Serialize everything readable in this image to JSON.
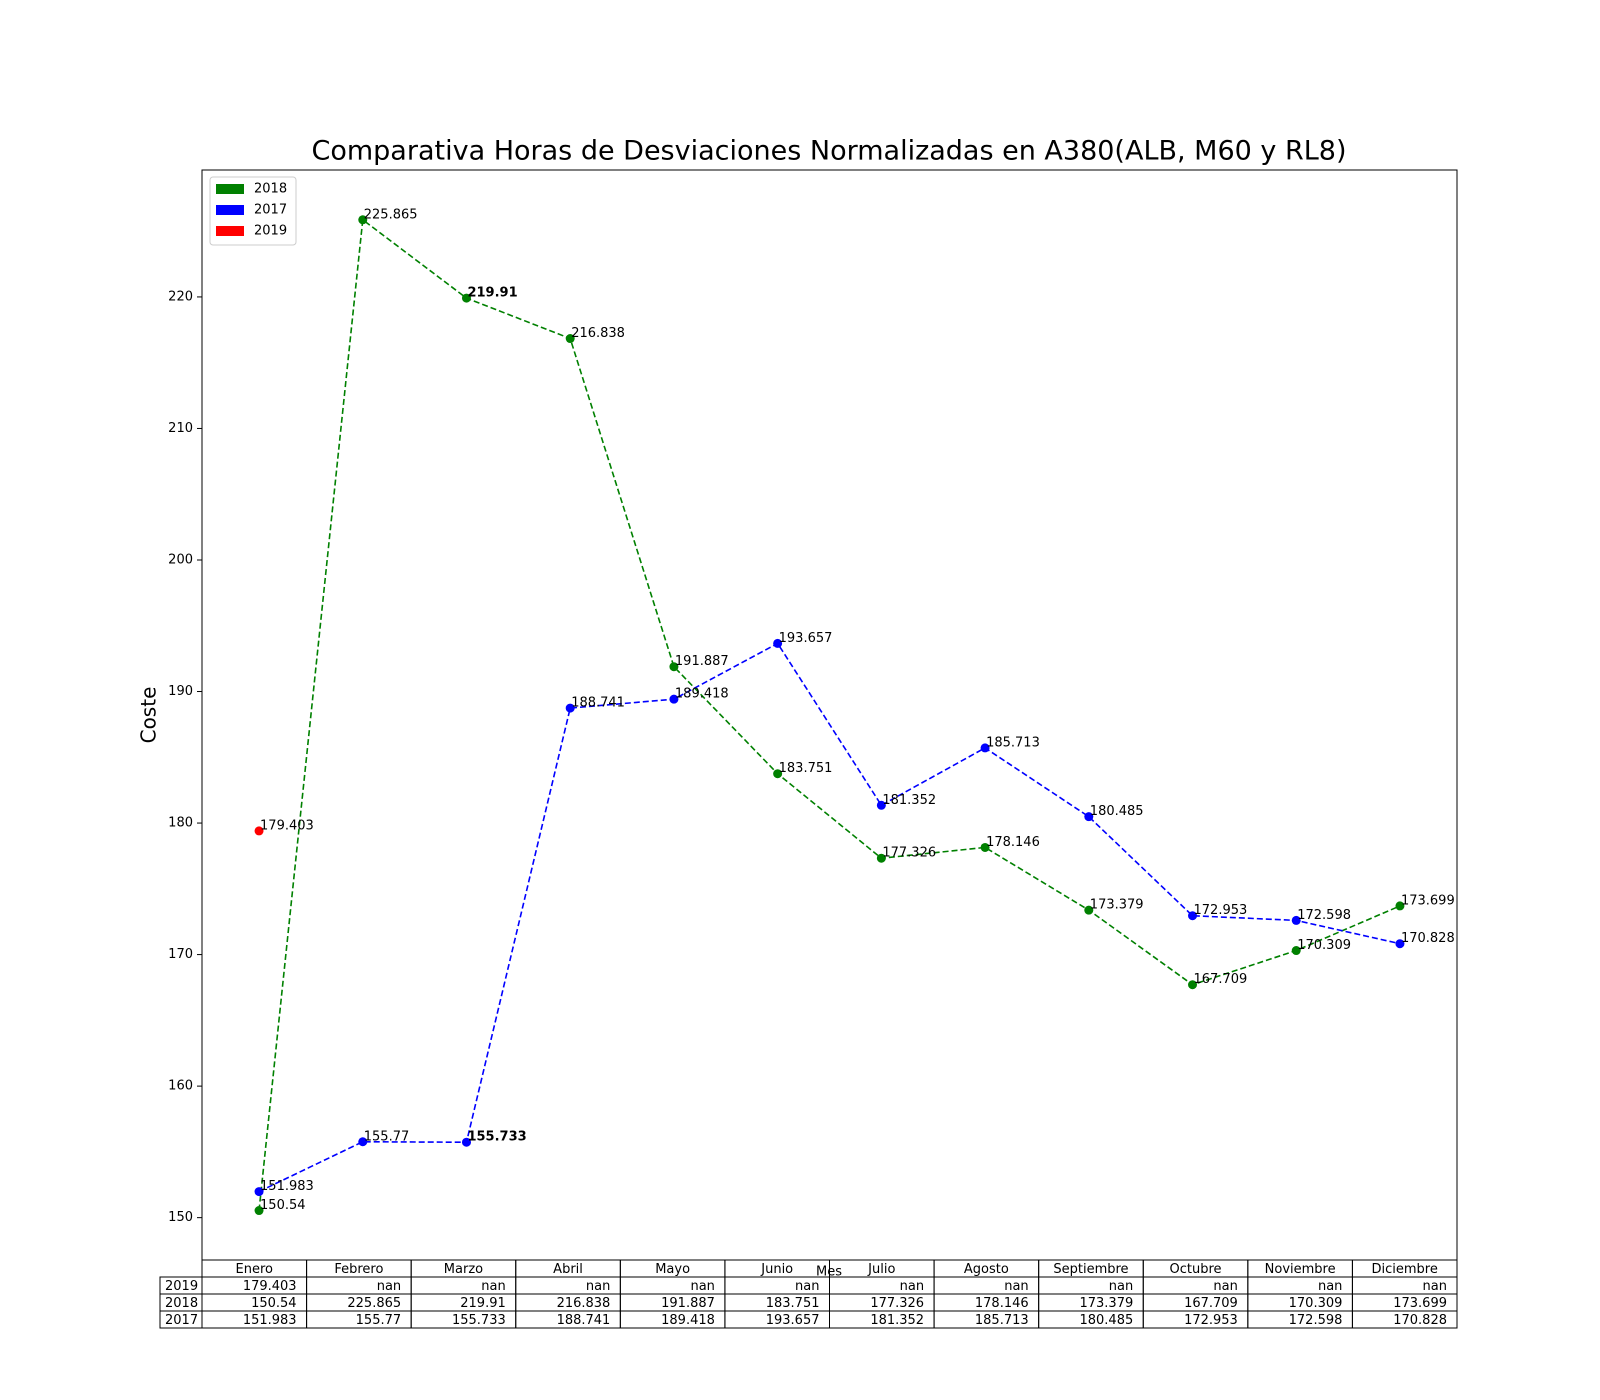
{
  "chart_data": {
    "type": "line",
    "title": "Comparativa Horas de Desviaciones Normalizadas en A380(ALB, M60 y RL8)",
    "ylabel": "Coste",
    "xlabel": "Mes",
    "categories": [
      "Enero",
      "Febrero",
      "Marzo",
      "Abril",
      "Mayo",
      "Junio",
      "Julio",
      "Agosto",
      "Septiembre",
      "Octubre",
      "Noviembre",
      "Diciembre"
    ],
    "series": [
      {
        "name": "2018",
        "color": "#008000",
        "values": [
          150.54,
          225.865,
          219.91,
          216.838,
          191.887,
          183.751,
          177.326,
          178.146,
          173.379,
          167.709,
          170.309,
          173.699
        ]
      },
      {
        "name": "2017",
        "color": "#0000ff",
        "values": [
          151.983,
          155.77,
          155.733,
          188.741,
          189.418,
          193.657,
          181.352,
          185.713,
          180.485,
          172.953,
          172.598,
          170.828
        ]
      },
      {
        "name": "2019",
        "color": "#ff0000",
        "values": [
          179.403,
          null,
          null,
          null,
          null,
          null,
          null,
          null,
          null,
          null,
          null,
          null
        ],
        "value_labels": [
          "179.403",
          "nan",
          "nan",
          "nan",
          "nan",
          "nan",
          "nan",
          "nan",
          "nan",
          "nan",
          "nan",
          "nan"
        ]
      }
    ],
    "ylim": [
      146.78,
      229.65
    ],
    "yticks": [
      150,
      160,
      170,
      180,
      190,
      200,
      210,
      220
    ],
    "legend": "upper left"
  }
}
